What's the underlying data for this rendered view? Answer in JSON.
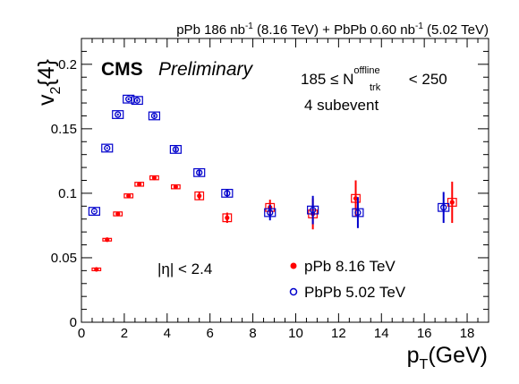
{
  "chart_data": {
    "type": "scatter",
    "header": {
      "part1": "pPb 186 nb",
      "sup1": "-1",
      "part2": " (8.16 TeV) + PbPb 0.60 nb",
      "sup2": "-1",
      "part3": " (5.02 TeV)"
    },
    "cms_label": "CMS",
    "preliminary_label": "Preliminary",
    "ylabel": {
      "main": "v",
      "sub": "2",
      "rest": "{4}"
    },
    "xlabel": {
      "main": "p",
      "sub": "T",
      "rest": "(GeV)"
    },
    "annotations": {
      "ntrk": {
        "prefix": "185 ≤ N",
        "sup": "offline",
        "sub": "trk",
        "suffix": " < 250"
      },
      "subevent": "4 subevent",
      "eta": "|η| < 2.4"
    },
    "xlim": [
      0,
      19
    ],
    "ylim": [
      0,
      0.22
    ],
    "x_ticks": [
      0,
      2,
      4,
      6,
      8,
      10,
      12,
      14,
      16,
      18
    ],
    "y_ticks": [
      0,
      0.05,
      0.1,
      0.15,
      0.2
    ],
    "y_tick_labels": [
      "0",
      "0.05",
      "0.1",
      "0.15",
      "0.2"
    ],
    "legend_position": "bottom-right",
    "series": [
      {
        "name": "pPb 8.16 TeV",
        "color": "#ff0000",
        "marker": "filled-circle",
        "x": [
          0.7,
          1.2,
          1.7,
          2.2,
          2.7,
          3.4,
          4.4,
          5.5,
          6.8,
          8.8,
          10.8,
          12.8,
          17.3
        ],
        "y": [
          0.041,
          0.064,
          0.084,
          0.098,
          0.107,
          0.112,
          0.105,
          0.098,
          0.081,
          0.089,
          0.084,
          0.096,
          0.093
        ],
        "err": [
          0.0005,
          0.0006,
          0.0008,
          0.0009,
          0.001,
          0.0012,
          0.0015,
          0.003,
          0.004,
          0.006,
          0.012,
          0.014,
          0.016
        ],
        "syst_half_width": [
          0.2,
          0.2,
          0.2,
          0.2,
          0.2,
          0.2,
          0.2,
          0.2,
          0.2,
          0.2,
          0.2,
          0.2,
          0.2
        ],
        "syst": [
          0.001,
          0.001,
          0.0015,
          0.0015,
          0.0015,
          0.0015,
          0.0015,
          0.003,
          0.003,
          0.003,
          0.003,
          0.003,
          0.003
        ]
      },
      {
        "name": "PbPb 5.02 TeV",
        "color": "#0000cc",
        "marker": "open-circle",
        "x": [
          0.6,
          1.2,
          1.7,
          2.2,
          2.6,
          3.4,
          4.4,
          5.5,
          6.8,
          8.8,
          10.8,
          12.9,
          16.9
        ],
        "y": [
          0.086,
          0.135,
          0.161,
          0.173,
          0.172,
          0.16,
          0.134,
          0.116,
          0.1,
          0.085,
          0.087,
          0.085,
          0.089
        ],
        "err": [
          0.0005,
          0.0006,
          0.0008,
          0.0009,
          0.001,
          0.0012,
          0.0015,
          0.002,
          0.003,
          0.006,
          0.011,
          0.012,
          0.012
        ],
        "syst_half_width": [
          0.25,
          0.25,
          0.25,
          0.25,
          0.25,
          0.25,
          0.25,
          0.25,
          0.25,
          0.25,
          0.25,
          0.25,
          0.25
        ],
        "syst": [
          0.003,
          0.003,
          0.003,
          0.003,
          0.003,
          0.003,
          0.003,
          0.003,
          0.003,
          0.003,
          0.003,
          0.003,
          0.003
        ]
      }
    ]
  }
}
